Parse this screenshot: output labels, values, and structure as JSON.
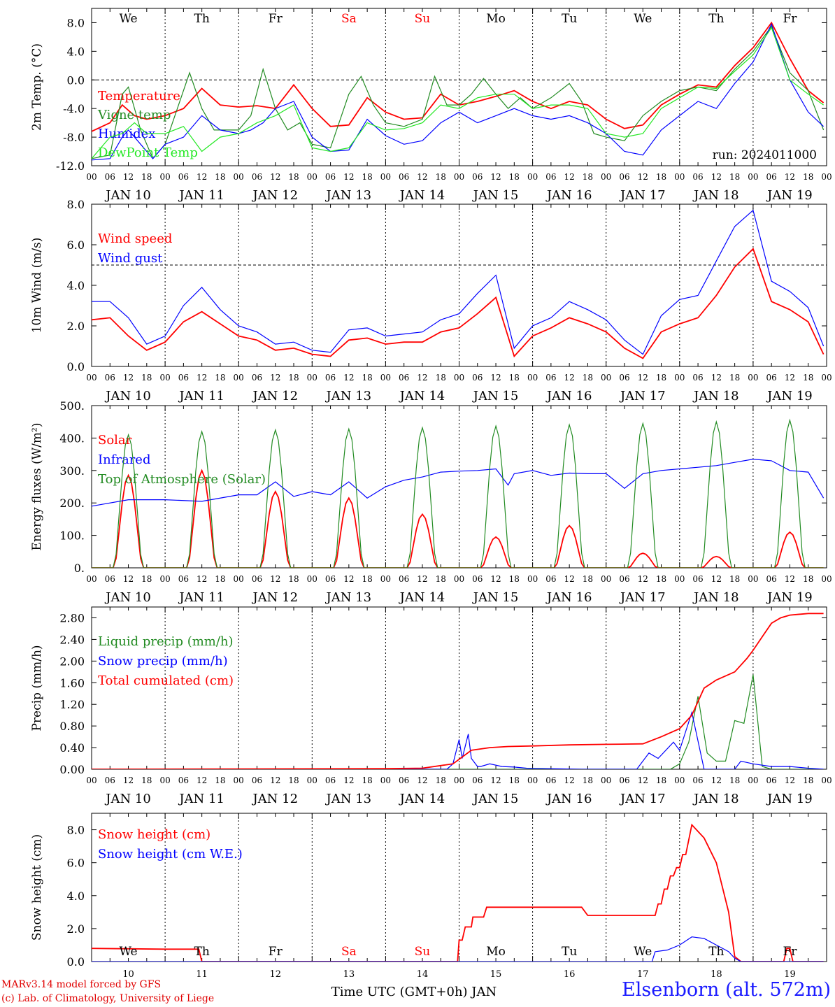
{
  "run_label": "run: 2024011000",
  "credits": {
    "line1": "MARv3.14 model forced by GFS",
    "line2": "(c) Lab. of Climatology, University of Liege"
  },
  "station": "Elsenborn (alt. 572m)",
  "colors": {
    "red": "#ff0000",
    "green": "#228b22",
    "lightgreen": "#22e822",
    "blue": "#0000ff",
    "weekend": "#ff0000",
    "weekday": "#000000"
  },
  "chart_data": [
    {
      "type": "line",
      "ylabel": "2m Temp. (°C)",
      "ylim": [
        -12,
        10
      ],
      "yticks": [
        "8.0",
        "4.0",
        "0.0",
        "-4.0",
        "-8.0",
        "-12.0"
      ],
      "ytick_values": [
        8,
        4,
        0,
        -4,
        -8,
        -12
      ],
      "hline": 0,
      "weekdays": [
        {
          "label": "We",
          "weekend": false
        },
        {
          "label": "Th",
          "weekend": false
        },
        {
          "label": "Fr",
          "weekend": false
        },
        {
          "label": "Sa",
          "weekend": true
        },
        {
          "label": "Su",
          "weekend": true
        },
        {
          "label": "Mo",
          "weekend": false
        },
        {
          "label": "Tu",
          "weekend": false
        },
        {
          "label": "We",
          "weekend": false
        },
        {
          "label": "Th",
          "weekend": false
        },
        {
          "label": "Fr",
          "weekend": false
        }
      ],
      "x_unit": "hours since JAN 10 00 UTC",
      "series": [
        {
          "name": "Temperature",
          "color": "red",
          "x": [
            0,
            6,
            10,
            14,
            18,
            24,
            30,
            36,
            42,
            48,
            54,
            60,
            66,
            72,
            78,
            84,
            90,
            96,
            102,
            108,
            114,
            120,
            126,
            132,
            138,
            144,
            150,
            156,
            162,
            168,
            174,
            180,
            186,
            192,
            198,
            204,
            210,
            216,
            222,
            228,
            234,
            239
          ],
          "y": [
            -7.2,
            -6,
            -3.5,
            -5,
            -5.5,
            -5,
            -4,
            -1.2,
            -3.5,
            -3.8,
            -3.6,
            -4,
            -0.7,
            -4,
            -6.5,
            -6.3,
            -2.5,
            -4.5,
            -5.5,
            -5.3,
            -2,
            -3.5,
            -3,
            -2.3,
            -1.5,
            -3,
            -4,
            -3,
            -3.5,
            -5.5,
            -6.8,
            -6.3,
            -3.5,
            -2,
            -0.7,
            -1,
            2,
            4.5,
            8,
            3,
            -1.5,
            -3.2
          ]
        },
        {
          "name": "Vigne temp",
          "color": "green",
          "x": [
            0,
            6,
            10,
            12,
            16,
            20,
            24,
            28,
            32,
            36,
            40,
            44,
            48,
            52,
            56,
            60,
            64,
            68,
            72,
            78,
            84,
            88,
            92,
            96,
            102,
            108,
            112,
            116,
            120,
            124,
            128,
            132,
            136,
            140,
            144,
            150,
            156,
            160,
            164,
            168,
            174,
            180,
            186,
            192,
            198,
            204,
            210,
            216,
            222,
            228,
            234,
            239
          ],
          "y": [
            -11,
            -10.5,
            -2,
            -1,
            -7,
            -11,
            -9,
            -4,
            1,
            -4,
            -7,
            -7,
            -7,
            -5,
            1.5,
            -4,
            -7,
            -6,
            -9,
            -9.5,
            -2,
            0.5,
            -3.5,
            -6,
            -6.5,
            -5.5,
            0.5,
            -3.5,
            -3.5,
            -2,
            0.2,
            -2,
            -4,
            -2.5,
            -4,
            -2.5,
            -0.5,
            -3,
            -7.5,
            -8,
            -8.5,
            -5,
            -3,
            -1.5,
            -1,
            -1.5,
            1.5,
            4,
            7.5,
            1,
            -1.5,
            -7
          ]
        },
        {
          "name": "Humidex",
          "color": "blue",
          "x": [
            0,
            6,
            10,
            12,
            16,
            20,
            24,
            30,
            36,
            42,
            48,
            52,
            56,
            60,
            66,
            72,
            78,
            84,
            90,
            96,
            102,
            108,
            114,
            120,
            126,
            132,
            138,
            144,
            150,
            156,
            162,
            168,
            174,
            180,
            186,
            192,
            198,
            204,
            210,
            216,
            222,
            228,
            234,
            239
          ],
          "y": [
            -11.2,
            -11,
            -8,
            -7,
            -9,
            -11,
            -9,
            -8,
            -5,
            -7,
            -7.5,
            -7,
            -6,
            -4,
            -3,
            -8,
            -10,
            -9.8,
            -5.5,
            -7.8,
            -9,
            -8.5,
            -6,
            -4.5,
            -6,
            -5,
            -4,
            -5,
            -5.5,
            -5,
            -6,
            -7.5,
            -10,
            -10.5,
            -7,
            -5,
            -3,
            -4,
            -0.5,
            2.5,
            7.8,
            0,
            -4.5,
            -6.5
          ]
        },
        {
          "name": "DewPoint Temp",
          "color": "lightgreen",
          "x": [
            0,
            6,
            10,
            14,
            18,
            24,
            30,
            36,
            42,
            48,
            54,
            60,
            66,
            72,
            78,
            84,
            90,
            96,
            102,
            108,
            114,
            120,
            126,
            132,
            138,
            144,
            150,
            156,
            162,
            168,
            174,
            180,
            186,
            192,
            198,
            204,
            210,
            216,
            222,
            228,
            234,
            239
          ],
          "y": [
            -11,
            -8,
            -7.5,
            -6,
            -7.5,
            -7.5,
            -6.5,
            -10,
            -8,
            -7.5,
            -6,
            -5,
            -3.5,
            -9.5,
            -10,
            -9.5,
            -6,
            -7,
            -6.8,
            -6,
            -3.5,
            -4,
            -2.5,
            -2,
            -2,
            -4,
            -3.5,
            -3.5,
            -4,
            -7.5,
            -8,
            -7.5,
            -4,
            -2.5,
            -1,
            -1.2,
            1.2,
            3.5,
            7.3,
            0,
            -2,
            -3.5
          ]
        }
      ]
    },
    {
      "type": "line",
      "ylabel": "10m Wind (m/s)",
      "ylim": [
        0,
        8
      ],
      "yticks": [
        "8.0",
        "6.0",
        "4.0",
        "2.0",
        "0.0"
      ],
      "ytick_values": [
        8,
        6,
        4,
        2,
        0
      ],
      "hline": 5,
      "series": [
        {
          "name": "Wind speed",
          "color": "red",
          "x": [
            0,
            6,
            12,
            18,
            24,
            30,
            36,
            42,
            48,
            54,
            60,
            66,
            72,
            78,
            84,
            90,
            96,
            102,
            108,
            114,
            120,
            126,
            132,
            138,
            144,
            150,
            156,
            162,
            168,
            174,
            180,
            186,
            192,
            198,
            204,
            210,
            216,
            222,
            228,
            234,
            239
          ],
          "y": [
            2.3,
            2.4,
            1.5,
            0.8,
            1.2,
            2.2,
            2.7,
            2.1,
            1.5,
            1.3,
            0.8,
            0.9,
            0.6,
            0.5,
            1.3,
            1.4,
            1.1,
            1.2,
            1.2,
            1.7,
            1.9,
            2.6,
            3.4,
            0.5,
            1.5,
            1.9,
            2.4,
            2.1,
            1.7,
            0.9,
            0.4,
            1.7,
            2.1,
            2.4,
            3.5,
            4.9,
            5.8,
            3.2,
            2.8,
            2.2,
            0.6
          ]
        },
        {
          "name": "Wind gust",
          "color": "blue",
          "x": [
            0,
            6,
            12,
            18,
            24,
            30,
            36,
            42,
            48,
            54,
            60,
            66,
            72,
            78,
            84,
            90,
            96,
            102,
            108,
            114,
            120,
            126,
            132,
            138,
            144,
            150,
            156,
            162,
            168,
            174,
            180,
            186,
            192,
            198,
            204,
            210,
            216,
            222,
            228,
            234,
            239
          ],
          "y": [
            3.2,
            3.2,
            2.4,
            1.1,
            1.5,
            3.0,
            3.9,
            2.8,
            2.0,
            1.7,
            1.1,
            1.2,
            0.8,
            0.7,
            1.8,
            1.9,
            1.5,
            1.6,
            1.7,
            2.3,
            2.6,
            3.6,
            4.5,
            0.9,
            2.0,
            2.4,
            3.2,
            2.8,
            2.3,
            1.3,
            0.6,
            2.5,
            3.3,
            3.5,
            5.2,
            6.9,
            7.7,
            4.2,
            3.7,
            2.9,
            1.0
          ]
        }
      ]
    },
    {
      "type": "line",
      "ylabel": "Energy fluxes (W/m²)",
      "ylim": [
        0,
        500
      ],
      "yticks": [
        "500.",
        "400.",
        "300.",
        "200.",
        "100.",
        "0."
      ],
      "ytick_values": [
        500,
        400,
        300,
        200,
        100,
        0
      ],
      "diurnal_peaks": {
        "solar": [
          285,
          300,
          235,
          215,
          165,
          95,
          130,
          45,
          35,
          110
        ],
        "top_of_atmosphere": [
          410,
          420,
          425,
          428,
          432,
          437,
          441,
          445,
          450,
          455
        ]
      },
      "series": [
        {
          "name": "Solar",
          "color": "red"
        },
        {
          "name": "Infrared",
          "color": "blue",
          "x": [
            0,
            12,
            24,
            36,
            48,
            54,
            60,
            66,
            72,
            78,
            84,
            90,
            96,
            102,
            108,
            114,
            120,
            126,
            132,
            136,
            138,
            144,
            150,
            156,
            162,
            168,
            174,
            180,
            186,
            192,
            198,
            204,
            210,
            216,
            222,
            228,
            234,
            239
          ],
          "y": [
            190,
            210,
            210,
            205,
            225,
            225,
            265,
            220,
            235,
            225,
            265,
            215,
            250,
            270,
            280,
            295,
            298,
            300,
            305,
            255,
            290,
            300,
            285,
            292,
            290,
            290,
            245,
            290,
            300,
            305,
            310,
            315,
            325,
            335,
            330,
            300,
            295,
            215
          ]
        },
        {
          "name": "Top of Atmosphere (Solar)",
          "color": "green"
        }
      ]
    },
    {
      "type": "line",
      "ylabel": "Precip (mm/h)",
      "ylim": [
        0,
        3.0
      ],
      "yticks": [
        "2.80",
        "2.40",
        "2.00",
        "1.60",
        "1.20",
        "0.80",
        "0.40",
        "0.00"
      ],
      "ytick_values": [
        2.8,
        2.4,
        2.0,
        1.6,
        1.2,
        0.8,
        0.4,
        0.0
      ],
      "series": [
        {
          "name": "Liquid precip (mm/h)",
          "color": "green",
          "x": [
            0,
            189,
            192,
            195,
            198,
            201,
            204,
            207,
            210,
            213,
            216,
            219,
            222,
            225,
            239
          ],
          "y": [
            0,
            0,
            0.1,
            0.5,
            1.35,
            0.3,
            0.15,
            0.15,
            0.9,
            0.85,
            1.75,
            0.05,
            0,
            0,
            0
          ]
        },
        {
          "name": "Snow precip (mm/h)",
          "color": "blue",
          "x": [
            0,
            112,
            116,
            118,
            120,
            121,
            123,
            124,
            126,
            127,
            130,
            134,
            138,
            142,
            160,
            176,
            178,
            182,
            185,
            190,
            192,
            196,
            200,
            210,
            212,
            216,
            222,
            228,
            234,
            239
          ],
          "y": [
            0,
            0,
            0,
            0.1,
            0.55,
            0.2,
            0.65,
            0.2,
            0.05,
            0.05,
            0.1,
            0.05,
            0.04,
            0.02,
            0,
            0,
            0,
            0.3,
            0.2,
            0.5,
            0.35,
            1.05,
            0,
            0,
            0.15,
            0.1,
            0.05,
            0.05,
            0.02,
            0
          ]
        },
        {
          "name": "Total cumulated (cm)",
          "color": "red",
          "x": [
            0,
            96,
            108,
            118,
            124,
            130,
            136,
            144,
            156,
            168,
            180,
            186,
            192,
            196,
            200,
            204,
            210,
            214,
            216,
            219,
            222,
            225,
            228,
            234,
            239
          ],
          "y": [
            0,
            0.01,
            0.02,
            0.1,
            0.35,
            0.4,
            0.42,
            0.43,
            0.45,
            0.46,
            0.47,
            0.6,
            0.75,
            1.0,
            1.5,
            1.65,
            1.8,
            2.05,
            2.2,
            2.45,
            2.7,
            2.8,
            2.85,
            2.88,
            2.88
          ]
        }
      ]
    },
    {
      "type": "line",
      "ylabel": "Snow height (cm)",
      "ylim": [
        0,
        9
      ],
      "yticks": [
        "8.0",
        "6.0",
        "4.0",
        "2.0",
        "0.0"
      ],
      "ytick_values": [
        8,
        6,
        4,
        2,
        0
      ],
      "xlabel": "Time UTC (GMT+0h) JAN",
      "day_labels": [
        "10",
        "11",
        "12",
        "13",
        "14",
        "15",
        "16",
        "17",
        "18",
        "19"
      ],
      "series": [
        {
          "name": "Snow height (cm)",
          "color": "red",
          "x": [
            0,
            24,
            35,
            36,
            119.5,
            120,
            121,
            122,
            124,
            124.5,
            128,
            129,
            136,
            138,
            160,
            162,
            184,
            185,
            186,
            187,
            188,
            189,
            190,
            191,
            192,
            193,
            194,
            196,
            200,
            204,
            208,
            210,
            212,
            213,
            226,
            227,
            228,
            229,
            239
          ],
          "y": [
            0.8,
            0.75,
            0.75,
            0,
            0,
            1.3,
            1.3,
            2.1,
            2.1,
            2.7,
            2.7,
            3.3,
            3.3,
            3.3,
            3.3,
            2.8,
            2.8,
            3.5,
            3.5,
            4.4,
            4.4,
            5.2,
            5.2,
            5.7,
            5.7,
            6.5,
            6.5,
            8.3,
            7.5,
            6.0,
            3.0,
            0.3,
            0,
            0,
            0,
            0.8,
            0.8,
            0,
            0
          ]
        },
        {
          "name": "Snow height (cm W.E.)",
          "color": "blue",
          "x": [
            0,
            183,
            184,
            188,
            192,
            196,
            200,
            204,
            208,
            210,
            212,
            239
          ],
          "y": [
            0,
            0,
            0.6,
            0.7,
            1.0,
            1.5,
            1.4,
            1.0,
            0.6,
            0.2,
            0,
            0
          ]
        }
      ]
    }
  ],
  "date_labels": [
    "JAN 10",
    "JAN 11",
    "JAN 12",
    "JAN 13",
    "JAN 14",
    "JAN 15",
    "JAN 16",
    "JAN 17",
    "JAN 18",
    "JAN 19"
  ],
  "hour_ticks": [
    "00",
    "06",
    "12",
    "18"
  ],
  "hour_tick_end": "00"
}
